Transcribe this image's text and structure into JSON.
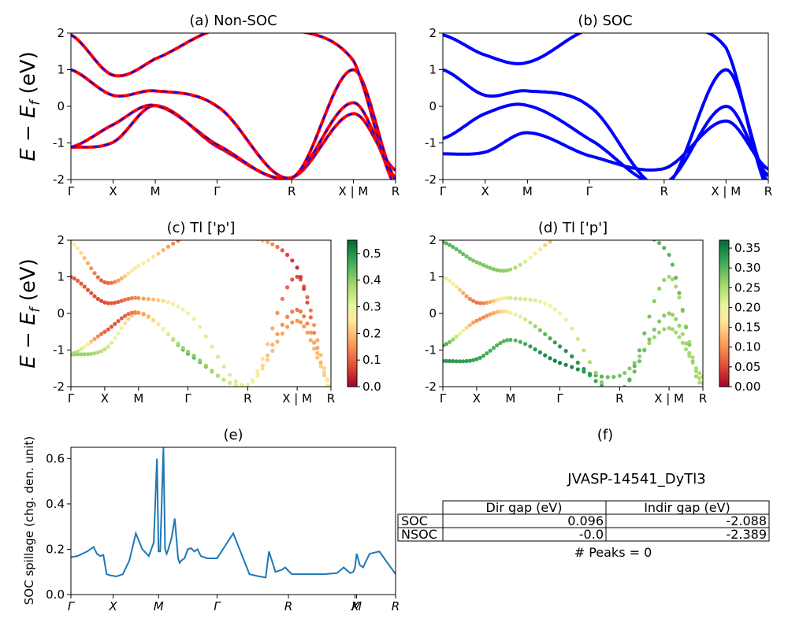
{
  "chart_data": [
    {
      "id": "a",
      "type": "line",
      "title": "(a) Non-SOC",
      "ylabel_lines": [
        "E − E",
        "f",
        " (eV)"
      ],
      "ylim": [
        -2,
        2
      ],
      "yticks": [
        2,
        1,
        0,
        -1,
        -2
      ],
      "xlabels": [
        "Γ",
        "X",
        "M",
        "Γ",
        "R",
        "X | M",
        "R"
      ],
      "x": [
        0,
        0.13,
        0.26,
        0.45,
        0.68,
        0.87,
        1.0
      ],
      "series": [
        {
          "color": "#ff0000",
          "values": [
            -1.12,
            -0.98,
            0.02,
            -1.1,
            -1.95,
            -0.2,
            -1.75
          ]
        },
        {
          "color": "#ff0000",
          "values": [
            -1.12,
            -0.5,
            0.02,
            -1.05,
            -1.95,
            0.1,
            -1.95
          ]
        },
        {
          "color": "#ff0000",
          "values": [
            1.0,
            0.3,
            0.42,
            0.0,
            -1.95,
            1.0,
            -2.0
          ]
        },
        {
          "color": "#ff0000",
          "values": [
            1.95,
            0.85,
            1.3,
            2.1,
            2.1,
            1.25,
            -2.2
          ]
        }
      ]
    },
    {
      "id": "b",
      "type": "line",
      "title": "(b) SOC",
      "ylim": [
        -2,
        2
      ],
      "yticks": [
        2,
        1,
        0,
        -1,
        -2
      ],
      "xlabels": [
        "Γ",
        "X",
        "M",
        "Γ",
        "R",
        "X | M",
        "R"
      ],
      "x": [
        0,
        0.13,
        0.26,
        0.45,
        0.68,
        0.87,
        1.0
      ],
      "series": [
        {
          "color": "#0000ff",
          "values": [
            -1.3,
            -1.25,
            -0.72,
            -1.35,
            -1.7,
            -0.4,
            -1.72
          ]
        },
        {
          "color": "#0000ff",
          "values": [
            -0.88,
            -0.2,
            0.02,
            -0.9,
            -2.1,
            0.0,
            -1.9
          ]
        },
        {
          "color": "#0000ff",
          "values": [
            1.0,
            0.3,
            0.42,
            0.0,
            -2.2,
            1.0,
            -2.1
          ]
        },
        {
          "color": "#0000ff",
          "values": [
            1.95,
            1.4,
            1.2,
            2.1,
            2.1,
            1.6,
            -2.3
          ]
        }
      ]
    },
    {
      "id": "c",
      "type": "scatter",
      "title": "(c)  Tl ['p']",
      "ylabel_lines": [
        "E − E",
        "f",
        " (eV)"
      ],
      "ylim": [
        -2,
        2
      ],
      "yticks": [
        2,
        1,
        0,
        -1,
        -2
      ],
      "xlabels": [
        "Γ",
        "X",
        "M",
        "Γ",
        "R",
        "X | M",
        "R"
      ],
      "x": [
        0,
        0.13,
        0.26,
        0.45,
        0.68,
        0.87,
        1.0
      ],
      "colorbar": {
        "range": [
          0.0,
          0.55
        ],
        "ticks": [
          "0.5",
          "0.4",
          "0.3",
          "0.2",
          "0.1",
          "0.0"
        ],
        "tick_values": [
          0.5,
          0.4,
          0.3,
          0.2,
          0.1,
          0.0
        ]
      },
      "series": [
        {
          "values": [
            -1.12,
            -0.98,
            0.02,
            -1.1,
            -1.95,
            -0.2,
            -1.95
          ],
          "weights": [
            0.4,
            0.35,
            0.2,
            0.45,
            0.28,
            0.15,
            0.25
          ]
        },
        {
          "values": [
            -1.12,
            -0.5,
            0.02,
            -1.05,
            -1.95,
            0.1,
            -1.95
          ],
          "weights": [
            0.4,
            0.1,
            0.15,
            0.4,
            0.28,
            0.12,
            0.25
          ]
        },
        {
          "values": [
            1.0,
            0.3,
            0.42,
            0.0,
            -1.95,
            1.0,
            -2.0
          ],
          "weights": [
            0.1,
            0.08,
            0.15,
            0.3,
            0.3,
            0.08,
            0.25
          ]
        },
        {
          "values": [
            1.95,
            0.85,
            1.3,
            2.1,
            2.1,
            1.25,
            -2.2
          ],
          "weights": [
            0.28,
            0.1,
            0.28,
            0.1,
            0.25,
            0.05,
            0.25
          ]
        }
      ]
    },
    {
      "id": "d",
      "type": "scatter",
      "title": "(d) Tl ['p']",
      "ylim": [
        -2,
        2
      ],
      "yticks": [
        2,
        1,
        0,
        -1,
        -2
      ],
      "xlabels": [
        "Γ",
        "X",
        "M",
        "Γ",
        "R",
        "X | M",
        "R"
      ],
      "x": [
        0,
        0.13,
        0.26,
        0.45,
        0.68,
        0.87,
        1.0
      ],
      "colorbar": {
        "range": [
          0.0,
          0.37
        ],
        "ticks": [
          "0.35",
          "0.30",
          "0.25",
          "0.20",
          "0.15",
          "0.10",
          "0.05",
          "0.00"
        ],
        "tick_values": [
          0.35,
          0.3,
          0.25,
          0.2,
          0.15,
          0.1,
          0.05,
          0.0
        ]
      },
      "series": [
        {
          "values": [
            -1.3,
            -1.25,
            -0.72,
            -1.35,
            -1.7,
            -0.4,
            -1.72
          ],
          "weights": [
            0.33,
            0.32,
            0.3,
            0.35,
            0.28,
            0.26,
            0.25
          ]
        },
        {
          "values": [
            -0.88,
            -0.2,
            0.02,
            -0.9,
            -2.1,
            0.0,
            -1.9
          ],
          "weights": [
            0.32,
            0.1,
            0.18,
            0.33,
            0.3,
            0.27,
            0.25
          ]
        },
        {
          "values": [
            1.0,
            0.3,
            0.42,
            0.0,
            -2.2,
            1.0,
            -2.1
          ],
          "weights": [
            0.22,
            0.08,
            0.22,
            0.2,
            0.3,
            0.26,
            0.25
          ]
        },
        {
          "values": [
            1.95,
            1.4,
            1.2,
            2.1,
            2.1,
            1.6,
            -2.3
          ],
          "weights": [
            0.3,
            0.28,
            0.26,
            0.12,
            0.25,
            0.3,
            0.25
          ]
        }
      ]
    },
    {
      "id": "e",
      "type": "line",
      "title": "(e)",
      "ylabel": "SOC spillage (chg. den. unit)",
      "ylim": [
        0,
        0.65
      ],
      "yticks": [
        0.0,
        0.2,
        0.4,
        0.6
      ],
      "ytick_labels": [
        "0.0",
        "0.2",
        "0.4",
        "0.6"
      ],
      "xlabels": [
        "Γ",
        "X",
        "M",
        "Γ",
        "R",
        "X",
        "M",
        "R"
      ],
      "xlabel_positions": [
        0,
        0.13,
        0.27,
        0.45,
        0.67,
        0.875,
        0.88,
        1.0
      ],
      "series": [
        {
          "color": "#1f77b4",
          "x": [
            0,
            0.02,
            0.05,
            0.07,
            0.08,
            0.09,
            0.1,
            0.11,
            0.12,
            0.14,
            0.16,
            0.18,
            0.2,
            0.22,
            0.24,
            0.255,
            0.265,
            0.27,
            0.275,
            0.285,
            0.29,
            0.295,
            0.3,
            0.31,
            0.32,
            0.33,
            0.335,
            0.34,
            0.35,
            0.36,
            0.37,
            0.38,
            0.39,
            0.4,
            0.42,
            0.45,
            0.5,
            0.55,
            0.58,
            0.6,
            0.61,
            0.63,
            0.65,
            0.66,
            0.68,
            0.72,
            0.78,
            0.82,
            0.84,
            0.86,
            0.87,
            0.875,
            0.88,
            0.89,
            0.9,
            0.92,
            0.95,
            1.0
          ],
          "values": [
            0.165,
            0.17,
            0.19,
            0.21,
            0.18,
            0.17,
            0.175,
            0.09,
            0.085,
            0.08,
            0.09,
            0.15,
            0.27,
            0.2,
            0.17,
            0.23,
            0.6,
            0.19,
            0.19,
            0.65,
            0.2,
            0.18,
            0.2,
            0.25,
            0.335,
            0.16,
            0.14,
            0.15,
            0.16,
            0.2,
            0.205,
            0.19,
            0.2,
            0.17,
            0.16,
            0.16,
            0.27,
            0.09,
            0.08,
            0.075,
            0.19,
            0.1,
            0.11,
            0.12,
            0.09,
            0.09,
            0.09,
            0.095,
            0.12,
            0.095,
            0.1,
            0.12,
            0.18,
            0.13,
            0.12,
            0.18,
            0.19,
            0.09
          ]
        }
      ]
    }
  ],
  "panel_f": {
    "title": "(f)",
    "heading": "JVASP-14541_DyTl3",
    "columns": [
      "Dir gap (eV)",
      "Indir gap (eV)"
    ],
    "rows": [
      {
        "label": "SOC",
        "values": [
          "0.096",
          "-2.088"
        ]
      },
      {
        "label": "NSOC",
        "values": [
          "-0.0",
          "-2.389"
        ]
      }
    ],
    "footer": "# Peaks = 0"
  }
}
